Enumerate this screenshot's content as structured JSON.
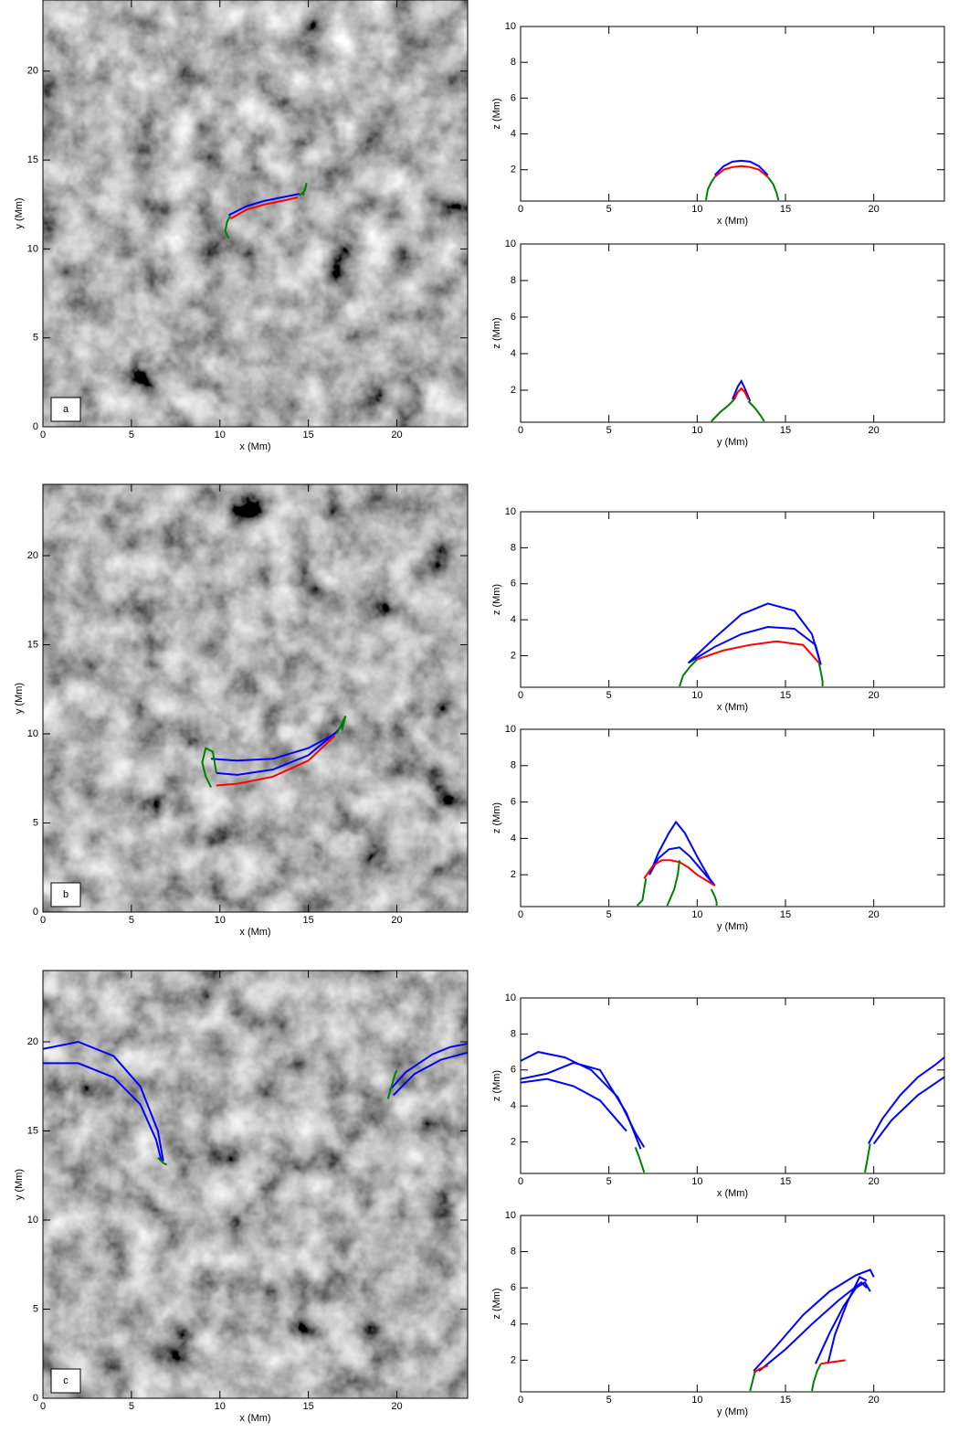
{
  "chart_data": [
    {
      "type": "line",
      "label": "a",
      "xlabel": "x (Mm)",
      "ylabel": "y (Mm)",
      "xlim": [
        0,
        24
      ],
      "ylim": [
        0,
        24
      ],
      "xticks": [
        0,
        5,
        10,
        15,
        20
      ],
      "yticks": [
        0,
        5,
        10,
        15,
        20
      ],
      "series": [
        {
          "color": "#0000ff",
          "x": [
            10.5,
            11.5,
            12.5,
            13.5,
            14.5
          ],
          "values": [
            11.9,
            12.4,
            12.7,
            12.9,
            13.1
          ]
        },
        {
          "color": "#ff0000",
          "x": [
            10.6,
            11.5,
            12.5,
            13.5,
            14.4
          ],
          "values": [
            11.7,
            12.2,
            12.5,
            12.7,
            12.9
          ]
        },
        {
          "color": "#008000",
          "x": [
            10.6,
            10.4,
            10.3,
            10.5
          ],
          "values": [
            11.9,
            11.5,
            11.0,
            10.6
          ]
        },
        {
          "color": "#008000",
          "x": [
            14.5,
            14.8,
            14.9,
            14.7
          ],
          "values": [
            13.0,
            13.3,
            13.7,
            13.0
          ]
        }
      ]
    },
    {
      "type": "line",
      "xlabel": "x (Mm)",
      "ylabel": "z (Mm)",
      "xlim": [
        0,
        24
      ],
      "ylim": [
        0.25,
        10
      ],
      "xticks": [
        0,
        5,
        10,
        15,
        20
      ],
      "yticks": [
        2,
        4,
        6,
        8,
        10
      ],
      "series": [
        {
          "color": "#0000ff",
          "x": [
            11,
            11.5,
            12,
            12.5,
            13,
            13.5,
            14
          ],
          "values": [
            1.7,
            2.2,
            2.45,
            2.5,
            2.45,
            2.2,
            1.7
          ]
        },
        {
          "color": "#ff0000",
          "x": [
            11,
            11.5,
            12,
            12.5,
            13,
            13.5,
            14
          ],
          "values": [
            1.6,
            2.0,
            2.15,
            2.2,
            2.15,
            2.0,
            1.6
          ]
        },
        {
          "color": "#008000",
          "x": [
            10.5,
            10.6,
            10.8,
            11.0
          ],
          "values": [
            0.3,
            0.9,
            1.3,
            1.6
          ]
        },
        {
          "color": "#008000",
          "x": [
            14,
            14.3,
            14.5,
            14.6
          ],
          "values": [
            1.6,
            1.2,
            0.7,
            0.3
          ]
        }
      ]
    },
    {
      "type": "line",
      "xlabel": "y (Mm)",
      "ylabel": "z (Mm)",
      "xlim": [
        0,
        24
      ],
      "ylim": [
        0.25,
        10
      ],
      "xticks": [
        0,
        5,
        10,
        15,
        20
      ],
      "yticks": [
        2,
        4,
        6,
        8,
        10
      ],
      "series": [
        {
          "color": "#0000ff",
          "x": [
            12.0,
            12.3,
            12.5,
            12.7,
            13.0
          ],
          "values": [
            1.5,
            2.2,
            2.5,
            2.1,
            1.4
          ]
        },
        {
          "color": "#ff0000",
          "x": [
            12.1,
            12.3,
            12.5,
            12.7,
            12.9
          ],
          "values": [
            1.5,
            1.9,
            2.1,
            1.9,
            1.5
          ]
        },
        {
          "color": "#008000",
          "x": [
            10.8,
            11.3,
            11.8,
            12.1
          ],
          "values": [
            0.3,
            0.8,
            1.2,
            1.5
          ]
        },
        {
          "color": "#008000",
          "x": [
            12.9,
            13.3,
            13.6,
            13.8
          ],
          "values": [
            1.4,
            1.0,
            0.6,
            0.3
          ]
        }
      ]
    },
    {
      "type": "line",
      "label": "b",
      "xlabel": "x (Mm)",
      "ylabel": "y (Mm)",
      "xlim": [
        0,
        24
      ],
      "ylim": [
        0,
        24
      ],
      "xticks": [
        0,
        5,
        10,
        15,
        20
      ],
      "yticks": [
        0,
        5,
        10,
        15,
        20
      ],
      "series": [
        {
          "color": "#0000ff",
          "x": [
            9.5,
            11,
            13,
            15,
            16.5,
            17
          ],
          "values": [
            8.6,
            8.5,
            8.6,
            9.2,
            10.0,
            10.6
          ]
        },
        {
          "color": "#0000ff",
          "x": [
            9.8,
            11,
            13,
            15,
            16.7
          ],
          "values": [
            7.8,
            7.7,
            8.0,
            8.8,
            10.2
          ]
        },
        {
          "color": "#ff0000",
          "x": [
            9.8,
            11,
            13,
            15,
            16.5
          ],
          "values": [
            7.1,
            7.2,
            7.6,
            8.5,
            9.9
          ]
        },
        {
          "color": "#008000",
          "x": [
            9.5,
            9.2,
            9.0,
            9.2,
            9.6,
            9.8
          ],
          "values": [
            7.0,
            7.6,
            8.4,
            9.2,
            9.0,
            7.8
          ]
        },
        {
          "color": "#008000",
          "x": [
            16.6,
            16.9,
            17.1,
            16.9
          ],
          "values": [
            10.0,
            10.6,
            11.0,
            10.2
          ]
        }
      ]
    },
    {
      "type": "line",
      "xlabel": "x (Mm)",
      "ylabel": "z (Mm)",
      "xlim": [
        0,
        24
      ],
      "ylim": [
        0.25,
        10
      ],
      "xticks": [
        0,
        5,
        10,
        15,
        20
      ],
      "yticks": [
        2,
        4,
        6,
        8,
        10
      ],
      "series": [
        {
          "color": "#0000ff",
          "x": [
            9.5,
            11,
            12.5,
            14,
            15.5,
            16.5,
            17
          ],
          "values": [
            1.6,
            3.0,
            4.3,
            4.9,
            4.5,
            3.2,
            1.5
          ]
        },
        {
          "color": "#0000ff",
          "x": [
            9.5,
            11,
            12.5,
            14,
            15.5,
            16.7,
            17
          ],
          "values": [
            1.6,
            2.5,
            3.2,
            3.6,
            3.5,
            2.6,
            1.5
          ]
        },
        {
          "color": "#ff0000",
          "x": [
            10,
            11.5,
            13,
            14.5,
            16,
            16.9
          ],
          "values": [
            1.8,
            2.3,
            2.6,
            2.8,
            2.6,
            1.6
          ]
        },
        {
          "color": "#008000",
          "x": [
            9,
            9.2,
            9.6,
            10
          ],
          "values": [
            0.3,
            0.9,
            1.4,
            1.8
          ]
        },
        {
          "color": "#008000",
          "x": [
            16.9,
            17,
            17.1,
            17.1
          ],
          "values": [
            1.6,
            1.1,
            0.6,
            0.3
          ]
        }
      ]
    },
    {
      "type": "line",
      "xlabel": "y (Mm)",
      "ylabel": "z (Mm)",
      "xlim": [
        0,
        24
      ],
      "ylim": [
        0.25,
        10
      ],
      "xticks": [
        0,
        5,
        10,
        15,
        20
      ],
      "yticks": [
        2,
        4,
        6,
        8,
        10
      ],
      "series": [
        {
          "color": "#0000ff",
          "x": [
            7.3,
            7.8,
            8.4,
            8.8,
            9.3,
            10,
            10.7,
            11
          ],
          "values": [
            2.0,
            3.2,
            4.3,
            4.9,
            4.3,
            3.0,
            1.8,
            1.4
          ]
        },
        {
          "color": "#0000ff",
          "x": [
            7.3,
            7.8,
            8.4,
            9,
            9.6,
            10.3,
            11
          ],
          "values": [
            2.0,
            2.9,
            3.4,
            3.5,
            3.0,
            2.2,
            1.4
          ]
        },
        {
          "color": "#ff0000",
          "x": [
            7,
            7.5,
            8,
            8.5,
            9,
            9.5,
            10,
            10.5,
            11
          ],
          "values": [
            1.8,
            2.5,
            2.8,
            2.8,
            2.7,
            2.4,
            2.0,
            1.7,
            1.4
          ]
        },
        {
          "color": "#008000",
          "x": [
            6.6,
            6.9,
            7.0,
            7.1
          ],
          "values": [
            0.3,
            0.6,
            1.2,
            1.8
          ]
        },
        {
          "color": "#008000",
          "x": [
            8.3,
            8.7,
            8.9,
            9.0
          ],
          "values": [
            0.3,
            1.2,
            2.0,
            2.8
          ]
        },
        {
          "color": "#008000",
          "x": [
            10.8,
            11.0,
            11.1,
            11.1
          ],
          "values": [
            1.2,
            0.8,
            0.5,
            0.3
          ]
        }
      ]
    },
    {
      "type": "line",
      "label": "c",
      "xlabel": "x (Mm)",
      "ylabel": "y (Mm)",
      "xlim": [
        0,
        24
      ],
      "ylim": [
        0,
        24
      ],
      "xticks": [
        0,
        5,
        10,
        15,
        20
      ],
      "yticks": [
        0,
        5,
        10,
        15,
        20
      ],
      "series": [
        {
          "color": "#0000ff",
          "x": [
            0,
            2,
            4,
            5.5,
            6.5,
            6.8
          ],
          "values": [
            19.6,
            20,
            19.2,
            17.5,
            15,
            13.3
          ]
        },
        {
          "color": "#0000ff",
          "x": [
            0,
            2,
            4,
            5.5,
            6.4,
            6.7
          ],
          "values": [
            18.8,
            18.8,
            18,
            16.5,
            14.5,
            13.3
          ]
        },
        {
          "color": "#008000",
          "x": [
            6.5,
            6.8,
            7.0
          ],
          "values": [
            13.5,
            13.2,
            13.1
          ]
        },
        {
          "color": "#0000ff",
          "x": [
            19.6,
            20.5,
            22,
            23,
            24
          ],
          "values": [
            17.3,
            18.3,
            19.3,
            19.7,
            19.9
          ]
        },
        {
          "color": "#0000ff",
          "x": [
            19.8,
            21,
            22.5,
            24
          ],
          "values": [
            17.0,
            18.2,
            19.0,
            19.4
          ]
        },
        {
          "color": "#008000",
          "x": [
            19.5,
            19.7,
            19.9,
            20.0
          ],
          "values": [
            16.8,
            17.5,
            18.2,
            18.4
          ]
        }
      ]
    },
    {
      "type": "line",
      "xlabel": "x (Mm)",
      "ylabel": "z (Mm)",
      "xlim": [
        0,
        24
      ],
      "ylim": [
        0.25,
        10
      ],
      "xticks": [
        0,
        5,
        10,
        15,
        20
      ],
      "yticks": [
        2,
        4,
        6,
        8,
        10
      ],
      "series": [
        {
          "color": "#0000ff",
          "x": [
            0,
            1,
            2.5,
            4,
            5.5,
            6.5,
            7
          ],
          "values": [
            6.5,
            7.0,
            6.7,
            6.0,
            4.5,
            2.5,
            1.7
          ]
        },
        {
          "color": "#0000ff",
          "x": [
            0,
            1.5,
            3,
            4.5,
            6,
            6.8
          ],
          "values": [
            5.5,
            5.8,
            6.4,
            6.0,
            3.6,
            1.6
          ]
        },
        {
          "color": "#0000ff",
          "x": [
            0,
            1.5,
            3,
            4.5,
            6
          ],
          "values": [
            5.3,
            5.5,
            5.1,
            4.3,
            2.6
          ]
        },
        {
          "color": "#008000",
          "x": [
            6.5,
            6.7,
            6.9,
            7.0
          ],
          "values": [
            1.7,
            1.2,
            0.6,
            0.3
          ]
        },
        {
          "color": "#0000ff",
          "x": [
            19.7,
            20.5,
            21.5,
            22.5,
            23.5,
            24
          ],
          "values": [
            1.9,
            3.3,
            4.6,
            5.6,
            6.3,
            6.7
          ]
        },
        {
          "color": "#0000ff",
          "x": [
            20,
            21,
            22.5,
            24
          ],
          "values": [
            1.9,
            3.2,
            4.6,
            5.6
          ]
        },
        {
          "color": "#008000",
          "x": [
            19.5,
            19.6,
            19.7,
            19.8
          ],
          "values": [
            0.3,
            0.8,
            1.4,
            1.9
          ]
        }
      ]
    },
    {
      "type": "line",
      "xlabel": "y (Mm)",
      "ylabel": "z (Mm)",
      "xlim": [
        0,
        24
      ],
      "ylim": [
        0.25,
        10
      ],
      "xticks": [
        0,
        5,
        10,
        15,
        20
      ],
      "yticks": [
        2,
        4,
        6,
        8,
        10
      ],
      "series": [
        {
          "color": "#0000ff",
          "x": [
            13.2,
            14.5,
            16,
            17.5,
            19,
            19.8,
            20
          ],
          "values": [
            1.4,
            2.8,
            4.5,
            5.8,
            6.7,
            7.0,
            6.6
          ]
        },
        {
          "color": "#0000ff",
          "x": [
            13.5,
            15,
            16.5,
            18,
            19.3,
            19.6
          ],
          "values": [
            1.4,
            2.6,
            4.0,
            5.3,
            6.3,
            6.0
          ]
        },
        {
          "color": "#0000ff",
          "x": [
            16.7,
            17.5,
            18.3,
            19,
            19.5,
            19.8
          ],
          "values": [
            1.8,
            3.5,
            5.0,
            6.0,
            6.3,
            5.8
          ]
        },
        {
          "color": "#0000ff",
          "x": [
            17.4,
            17.8,
            18.5,
            19.2,
            19.6
          ],
          "values": [
            1.8,
            3.4,
            5.2,
            6.6,
            6.4
          ]
        },
        {
          "color": "#008000",
          "x": [
            13.0,
            13.1,
            13.2,
            13.3
          ],
          "values": [
            0.3,
            0.7,
            1.1,
            1.4
          ]
        },
        {
          "color": "#008000",
          "x": [
            16.5,
            16.6,
            16.8,
            17.0
          ],
          "values": [
            0.3,
            0.8,
            1.4,
            1.8
          ]
        },
        {
          "color": "#ff0000",
          "x": [
            13.2,
            13.5,
            14
          ],
          "values": [
            1.3,
            1.5,
            1.7
          ]
        },
        {
          "color": "#ff0000",
          "x": [
            17,
            17.7,
            18.4
          ],
          "values": [
            1.8,
            1.9,
            2.0
          ]
        }
      ]
    }
  ]
}
